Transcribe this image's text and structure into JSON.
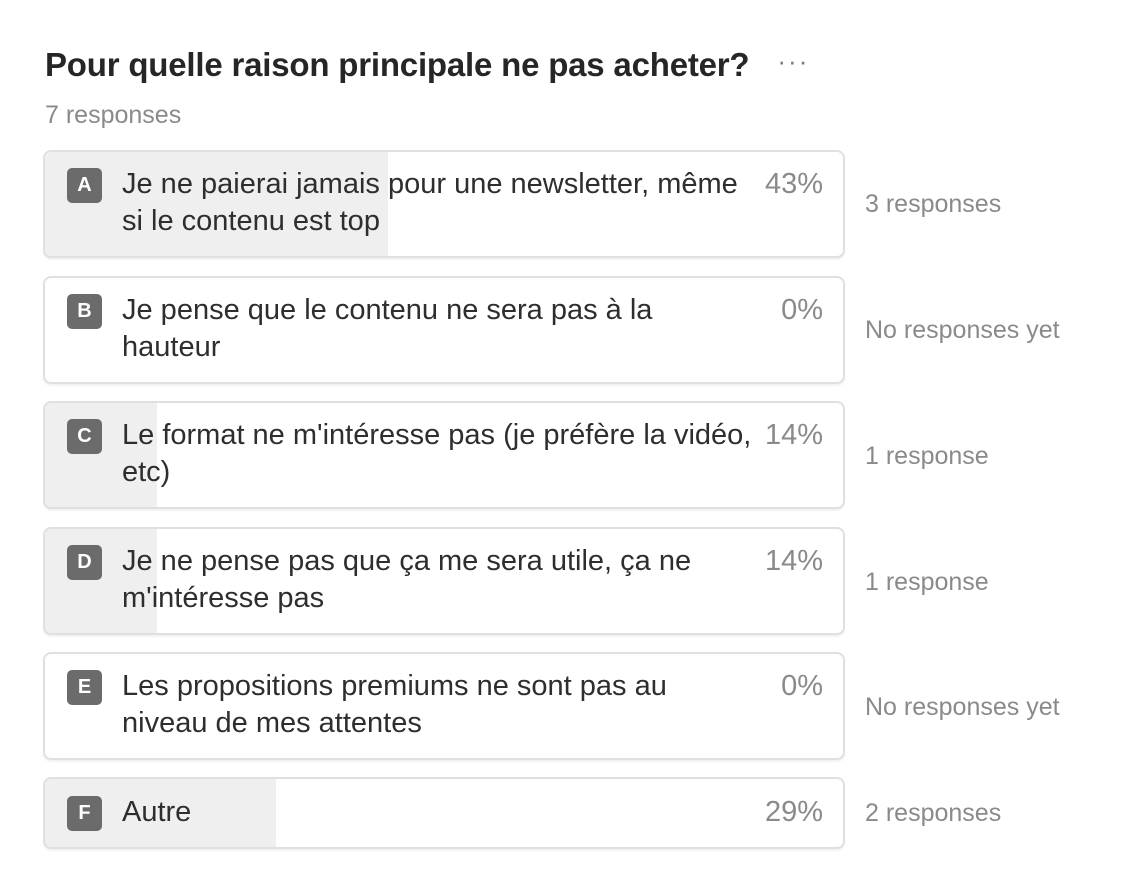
{
  "poll": {
    "title": "Pour quelle raison principale ne pas acheter?",
    "more_label": "···",
    "total_responses": "7 responses",
    "options": [
      {
        "letter": "A",
        "text": "Je ne paierai jamais pour une newsletter, même si le contenu est top",
        "percent_label": "43%",
        "percent": 43,
        "responses": "3 responses"
      },
      {
        "letter": "B",
        "text": "Je pense que le contenu ne sera pas à la hauteur",
        "percent_label": "0%",
        "percent": 0,
        "responses": "No responses yet"
      },
      {
        "letter": "C",
        "text": "Le format ne m'intéresse pas (je préfère la vidéo, etc)",
        "percent_label": "14%",
        "percent": 14,
        "responses": "1 response"
      },
      {
        "letter": "D",
        "text": "Je ne pense pas que ça me sera utile, ça ne m'intéresse pas",
        "percent_label": "14%",
        "percent": 14,
        "responses": "1 response"
      },
      {
        "letter": "E",
        "text": "Les propositions premiums ne sont pas au niveau de mes attentes",
        "percent_label": "0%",
        "percent": 0,
        "responses": "No responses yet"
      },
      {
        "letter": "F",
        "text": "Autre",
        "percent_label": "29%",
        "percent": 29,
        "responses": "2 responses"
      }
    ]
  },
  "colors": {
    "fill": "#efefef",
    "letter_badge": "#6b6b6b",
    "border": "#e0e0e0",
    "muted_text": "#8a8a8a"
  }
}
